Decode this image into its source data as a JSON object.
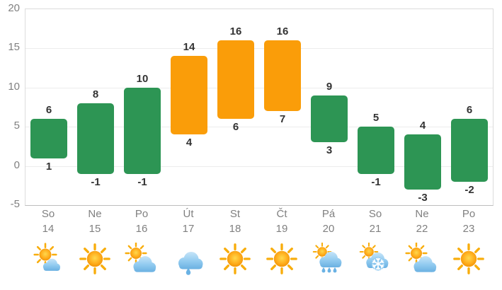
{
  "colors": {
    "bar_green": "#2d9554",
    "bar_orange": "#fa9d09",
    "value_label": "#333333",
    "axis_text": "#808080",
    "gridline": "#ececec",
    "plot_border": "#dcdcdc",
    "axis_line_bottom": "#bdbdbd",
    "background": "#ffffff",
    "sun_core": "#ffb020",
    "sun_rim": "#f18f00",
    "sun_rays": "#f8ad0c",
    "cloud_top": "#d2eafa",
    "cloud_bottom": "#5aa6dc",
    "raindrop": "#6ab2e4",
    "snowflake": "#ffffff"
  },
  "y_axis": {
    "min": -5,
    "max": 20,
    "ticks": [
      20,
      15,
      10,
      5,
      0,
      -5
    ]
  },
  "chart_data": {
    "type": "bar",
    "subtype": "floating_temperature_range_columns",
    "title": "",
    "xlabel": "",
    "ylabel": "",
    "categories": [
      "So 14",
      "Ne 15",
      "Po 16",
      "Út 17",
      "St 18",
      "Čt 19",
      "Pá 20",
      "So 21",
      "Ne 22",
      "Po 23"
    ],
    "series": [
      {
        "name": "high",
        "values": [
          6,
          8,
          10,
          14,
          16,
          16,
          9,
          5,
          4,
          6
        ]
      },
      {
        "name": "low",
        "values": [
          1,
          -1,
          -1,
          4,
          6,
          7,
          3,
          -1,
          -3,
          -2
        ]
      }
    ],
    "bar_color_keys": [
      "bar_green",
      "bar_green",
      "bar_green",
      "bar_orange",
      "bar_orange",
      "bar_orange",
      "bar_green",
      "bar_green",
      "bar_green",
      "bar_green"
    ],
    "ylim": [
      -5,
      20
    ],
    "grid": true,
    "legend": false
  },
  "days": [
    {
      "name": "So",
      "date": "14",
      "high": "6",
      "low": "1",
      "color": "bar_green",
      "icon": "sun-behind-small-cloud"
    },
    {
      "name": "Ne",
      "date": "15",
      "high": "8",
      "low": "-1",
      "color": "bar_green",
      "icon": "sunny"
    },
    {
      "name": "Po",
      "date": "16",
      "high": "10",
      "low": "-1",
      "color": "bar_green",
      "icon": "sun-behind-cloud"
    },
    {
      "name": "Út",
      "date": "17",
      "high": "14",
      "low": "4",
      "color": "bar_orange",
      "icon": "rain-cloud"
    },
    {
      "name": "St",
      "date": "18",
      "high": "16",
      "low": "6",
      "color": "bar_orange",
      "icon": "sunny"
    },
    {
      "name": "Čt",
      "date": "19",
      "high": "16",
      "low": "7",
      "color": "bar_orange",
      "icon": "sunny"
    },
    {
      "name": "Pá",
      "date": "20",
      "high": "9",
      "low": "3",
      "color": "bar_green",
      "icon": "sun-cloud-rain"
    },
    {
      "name": "So",
      "date": "21",
      "high": "5",
      "low": "-1",
      "color": "bar_green",
      "icon": "sun-cloud-snow"
    },
    {
      "name": "Ne",
      "date": "22",
      "high": "4",
      "low": "-3",
      "color": "bar_green",
      "icon": "sun-behind-cloud"
    },
    {
      "name": "Po",
      "date": "23",
      "high": "6",
      "low": "-2",
      "color": "bar_green",
      "icon": "sunny"
    }
  ]
}
